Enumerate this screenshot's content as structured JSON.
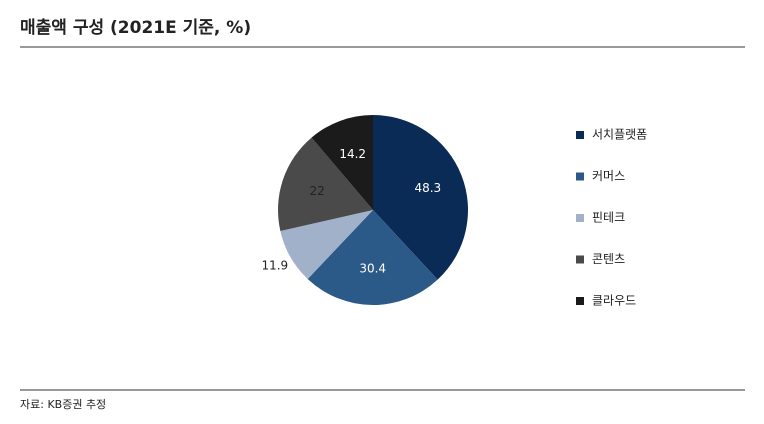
{
  "chart_data": {
    "type": "pie",
    "title": "매출액 구성 (2021E 기준, %)",
    "categories": [
      "서치플랫폼",
      "커머스",
      "핀테크",
      "콘텐츠",
      "클라우드"
    ],
    "values": [
      48.3,
      30.4,
      11.9,
      22.0,
      14.2
    ],
    "colors": [
      "#0b2b57",
      "#2c5a88",
      "#a2b1ca",
      "#4a4a4a",
      "#1b1b1b"
    ],
    "source": "자료: KB증권 추정"
  }
}
